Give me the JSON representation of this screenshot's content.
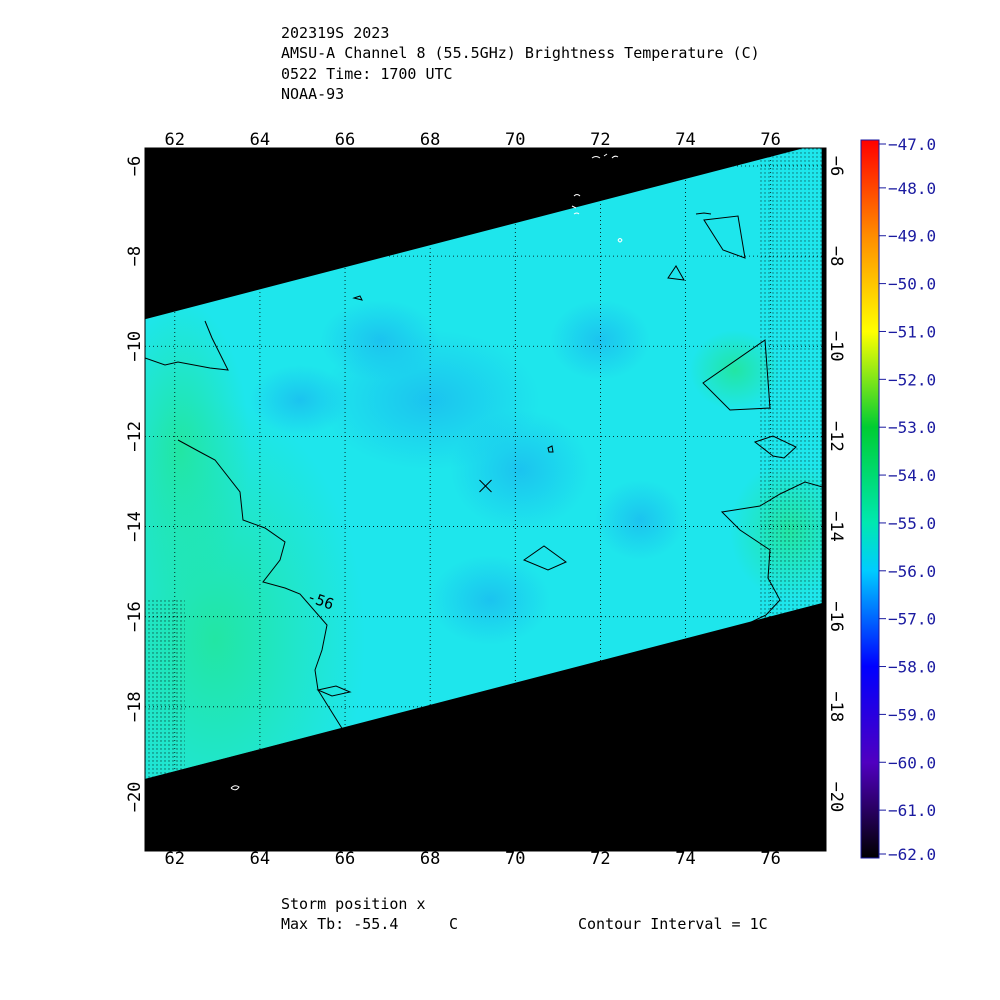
{
  "header": {
    "line1": "202319S 2023",
    "line2": "AMSU-A Channel 8 (55.5GHz) Brightness Temperature (C)",
    "line3": "0522 Time: 1700 UTC",
    "line4": "NOAA-93"
  },
  "footer": {
    "storm_position": "Storm position x",
    "max_tb_label": "Max Tb: -55.4",
    "max_tb_unit": "C",
    "contour_interval": "Contour Interval = 1C"
  },
  "colors": {
    "background_no_data": "#000000",
    "swath_base": "#1ee6ec",
    "swath_cold": "#1ec8f0",
    "swath_warm": "#22e6a8",
    "contour": "#000000"
  },
  "chart_data": {
    "type": "heatmap",
    "title": "AMSU-A Channel 8 (55.5GHz) Brightness Temperature (C)",
    "xlabel": "",
    "ylabel": "",
    "xlim": [
      61.3,
      77.3
    ],
    "ylim": [
      -21.2,
      -5.6
    ],
    "x_ticks": [
      62,
      64,
      66,
      68,
      70,
      72,
      74,
      76
    ],
    "y_ticks": [
      -6,
      -8,
      -10,
      -12,
      -14,
      -16,
      -18,
      -20
    ],
    "grid": true,
    "storm_position": {
      "lon": 69.3,
      "lat": -13.1,
      "marker": "x"
    },
    "contour_labels": [
      {
        "text": "-56",
        "lon": 65.3,
        "lat": -15.6
      }
    ],
    "swath_corners": [
      [
        61.3,
        -9.4
      ],
      [
        77.2,
        -5.5
      ],
      [
        77.2,
        -15.7
      ],
      [
        61.3,
        -19.6
      ]
    ],
    "max_tb": -55.4,
    "colorbar": {
      "min": -62.0,
      "max": -47.0,
      "step": 1.0,
      "labels": [
        "-47.0",
        "-48.0",
        "-49.0",
        "-50.0",
        "-51.0",
        "-52.0",
        "-53.0",
        "-54.0",
        "-55.0",
        "-56.0",
        "-57.0",
        "-58.0",
        "-59.0",
        "-60.0",
        "-61.0",
        "-62.0"
      ],
      "stops": [
        {
          "value": -47,
          "color": "#ff0000"
        },
        {
          "value": -49,
          "color": "#ff8c00"
        },
        {
          "value": -51,
          "color": "#ffff00"
        },
        {
          "value": -53,
          "color": "#00cc33"
        },
        {
          "value": -55,
          "color": "#00e8b0"
        },
        {
          "value": -56,
          "color": "#00ccff"
        },
        {
          "value": -58,
          "color": "#0000ff"
        },
        {
          "value": -60,
          "color": "#5000c0"
        },
        {
          "value": -62,
          "color": "#000000"
        }
      ]
    }
  }
}
